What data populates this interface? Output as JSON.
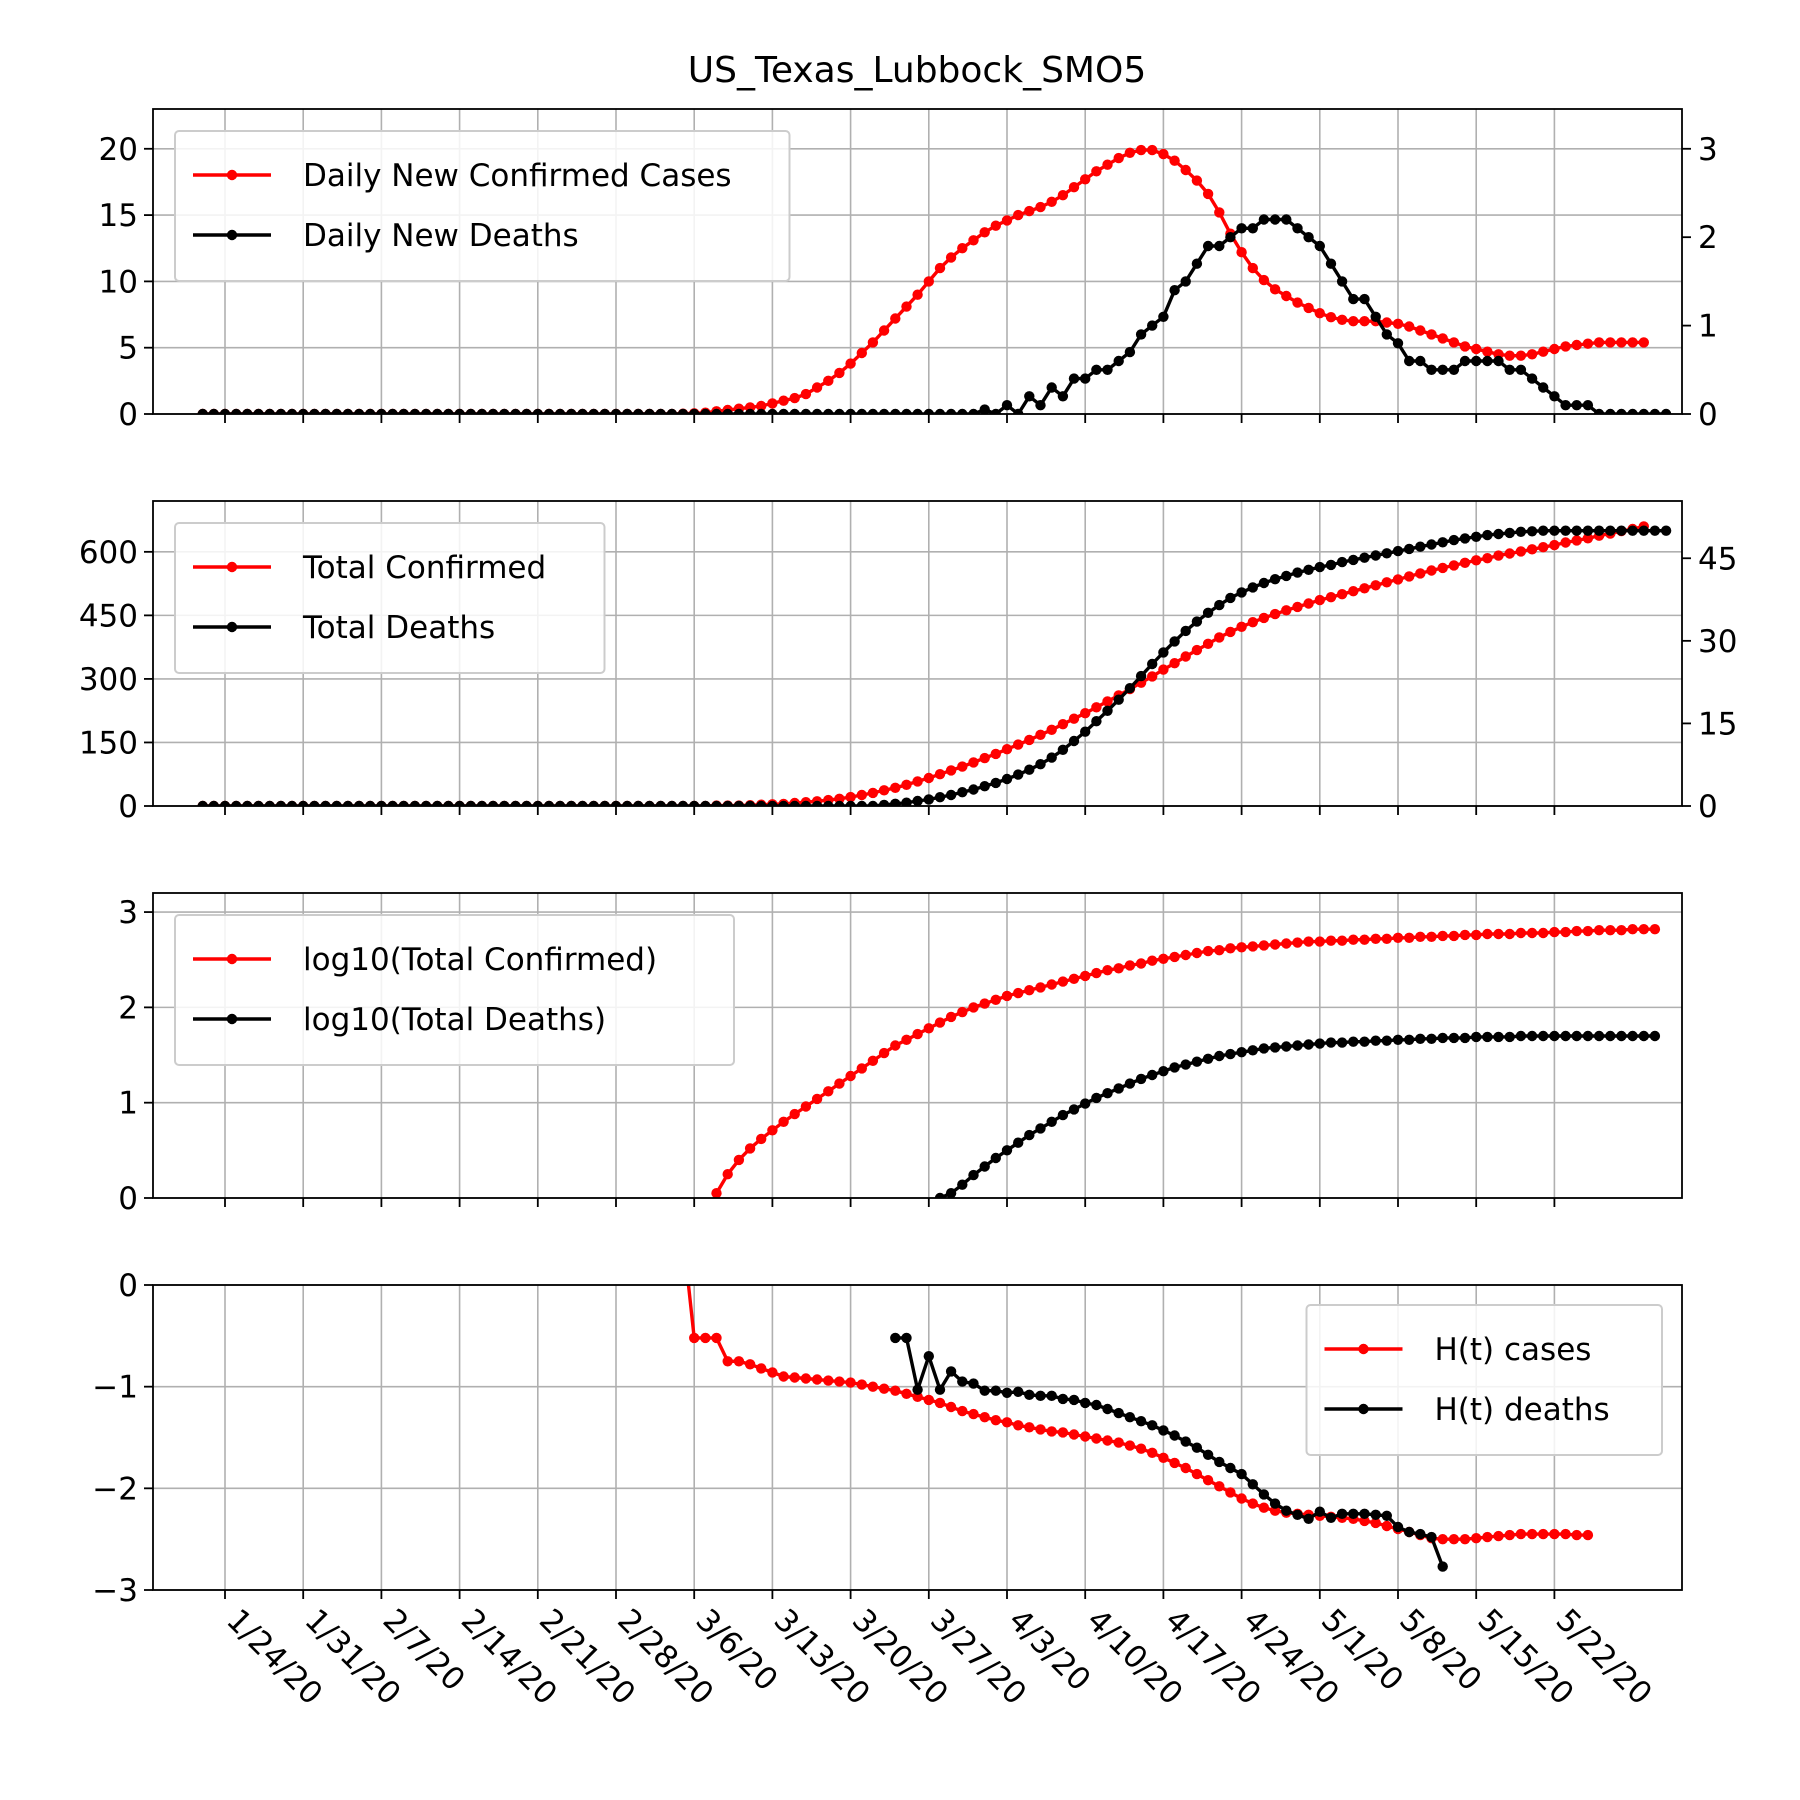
{
  "figure": {
    "title": "US_Texas_Lubbock_SMO5"
  },
  "colors": {
    "cases": "#ff0000",
    "deaths": "#000000",
    "grid": "#b0b0b0"
  },
  "chart_data": [
    {
      "type": "line",
      "panel": "daily",
      "x_start": "1/22/20",
      "x_step_days": 1,
      "x_ticks": [
        "1/24/20",
        "1/31/20",
        "2/7/20",
        "2/14/20",
        "2/21/20",
        "2/28/20",
        "3/6/20",
        "3/13/20",
        "3/20/20",
        "3/27/20",
        "4/3/20",
        "4/10/20",
        "4/17/20",
        "4/24/20",
        "5/1/20",
        "5/8/20",
        "5/15/20",
        "5/22/20"
      ],
      "ylim": [
        0,
        23
      ],
      "yticks": [
        0,
        5,
        10,
        15,
        20
      ],
      "y2lim": [
        0,
        3.45
      ],
      "y2ticks": [
        0,
        1,
        2,
        3
      ],
      "grid": true,
      "legend": "upper-left",
      "series": [
        {
          "name": "Daily New Confirmed Cases",
          "axis": "left",
          "color": "#ff0000",
          "values": [
            0,
            0,
            0,
            0,
            0,
            0,
            0,
            0,
            0,
            0,
            0,
            0,
            0,
            0,
            0,
            0,
            0,
            0,
            0,
            0,
            0,
            0,
            0,
            0,
            0,
            0,
            0,
            0,
            0,
            0,
            0,
            0,
            0,
            0,
            0,
            0,
            0,
            0,
            0,
            0,
            0,
            0,
            0,
            0.02,
            0.05,
            0.1,
            0.2,
            0.3,
            0.4,
            0.5,
            0.6,
            0.8,
            1.0,
            1.2,
            1.5,
            2.0,
            2.5,
            3.1,
            3.8,
            4.6,
            5.4,
            6.3,
            7.2,
            8.1,
            9.0,
            10.0,
            11.0,
            11.8,
            12.5,
            13.1,
            13.7,
            14.2,
            14.6,
            15.0,
            15.3,
            15.6,
            16.0,
            16.5,
            17.1,
            17.7,
            18.3,
            18.8,
            19.3,
            19.7,
            19.9,
            19.9,
            19.6,
            19.1,
            18.4,
            17.6,
            16.6,
            15.2,
            13.6,
            12.2,
            11.0,
            10.1,
            9.4,
            8.9,
            8.4,
            8.0,
            7.6,
            7.3,
            7.1,
            7.0,
            7.0,
            7.0,
            6.9,
            6.8,
            6.6,
            6.3,
            6.0,
            5.7,
            5.4,
            5.1,
            4.9,
            4.7,
            4.5,
            4.4,
            4.4,
            4.5,
            4.7,
            4.9,
            5.1,
            5.2,
            5.3,
            5.4,
            5.4,
            5.4,
            5.4,
            5.4
          ]
        },
        {
          "name": "Daily New Deaths",
          "axis": "right",
          "color": "#000000",
          "values": [
            0,
            0,
            0,
            0,
            0,
            0,
            0,
            0,
            0,
            0,
            0,
            0,
            0,
            0,
            0,
            0,
            0,
            0,
            0,
            0,
            0,
            0,
            0,
            0,
            0,
            0,
            0,
            0,
            0,
            0,
            0,
            0,
            0,
            0,
            0,
            0,
            0,
            0,
            0,
            0,
            0,
            0,
            0,
            0,
            0,
            0,
            0,
            0,
            0,
            0,
            0,
            0,
            0,
            0,
            0,
            0,
            0,
            0,
            0,
            0,
            0,
            0,
            0,
            0,
            0,
            0,
            0,
            0,
            0,
            0,
            0.05,
            0,
            0.1,
            0,
            0.2,
            0.1,
            0.3,
            0.2,
            0.4,
            0.4,
            0.5,
            0.5,
            0.6,
            0.7,
            0.9,
            1.0,
            1.1,
            1.4,
            1.5,
            1.7,
            1.9,
            1.9,
            2.0,
            2.1,
            2.1,
            2.2,
            2.2,
            2.2,
            2.1,
            2.0,
            1.9,
            1.7,
            1.5,
            1.3,
            1.3,
            1.1,
            0.9,
            0.8,
            0.6,
            0.6,
            0.5,
            0.5,
            0.5,
            0.6,
            0.6,
            0.6,
            0.6,
            0.5,
            0.5,
            0.4,
            0.3,
            0.2,
            0.1,
            0.1,
            0.1,
            0,
            0,
            0,
            0,
            0,
            0,
            0
          ]
        }
      ]
    },
    {
      "type": "line",
      "panel": "total",
      "x_start": "1/22/20",
      "x_step_days": 1,
      "ylim": [
        0,
        720
      ],
      "yticks": [
        0,
        150,
        300,
        450,
        600
      ],
      "y2lim": [
        0,
        55.4
      ],
      "y2ticks": [
        0,
        15,
        30,
        45
      ],
      "grid": true,
      "legend": "upper-left",
      "series": [
        {
          "name": "Total Confirmed",
          "axis": "left",
          "color": "#ff0000",
          "values": [
            0,
            0,
            0,
            0,
            0,
            0,
            0,
            0,
            0,
            0,
            0,
            0,
            0,
            0,
            0,
            0,
            0,
            0,
            0,
            0,
            0,
            0,
            0,
            0,
            0,
            0,
            0,
            0,
            0,
            0,
            0,
            0,
            0,
            0,
            0,
            0,
            0,
            0,
            0,
            0,
            0,
            0,
            0,
            0,
            0,
            0,
            1,
            1,
            1,
            2,
            3,
            4,
            5,
            7,
            9,
            11,
            14,
            17,
            21,
            26,
            31,
            37,
            43,
            50,
            58,
            66,
            75,
            84,
            93,
            103,
            113,
            123,
            134,
            145,
            156,
            168,
            180,
            193,
            206,
            219,
            233,
            247,
            261,
            276,
            291,
            306,
            322,
            337,
            353,
            368,
            383,
            398,
            411,
            423,
            434,
            444,
            453,
            462,
            470,
            478,
            486,
            493,
            500,
            507,
            514,
            521,
            528,
            535,
            542,
            549,
            556,
            562,
            568,
            574,
            580,
            585,
            591,
            596,
            601,
            606,
            611,
            616,
            622,
            627,
            632,
            638,
            643,
            649,
            654,
            660
          ]
        },
        {
          "name": "Total Deaths",
          "axis": "right",
          "color": "#000000",
          "values": [
            0,
            0,
            0,
            0,
            0,
            0,
            0,
            0,
            0,
            0,
            0,
            0,
            0,
            0,
            0,
            0,
            0,
            0,
            0,
            0,
            0,
            0,
            0,
            0,
            0,
            0,
            0,
            0,
            0,
            0,
            0,
            0,
            0,
            0,
            0,
            0,
            0,
            0,
            0,
            0,
            0,
            0,
            0,
            0,
            0,
            0,
            0,
            0,
            0,
            0,
            0,
            0,
            0,
            0,
            0,
            0,
            0,
            0,
            0,
            0,
            0,
            0.2,
            0.4,
            0.6,
            0.9,
            1.2,
            1.6,
            2.0,
            2.5,
            3.0,
            3.6,
            4.2,
            4.9,
            5.7,
            6.6,
            7.6,
            8.8,
            10.2,
            11.8,
            13.5,
            15.4,
            17.3,
            19.3,
            21.4,
            23.6,
            25.8,
            27.9,
            29.9,
            31.8,
            33.5,
            35.1,
            36.5,
            37.8,
            38.8,
            39.7,
            40.5,
            41.2,
            41.8,
            42.4,
            42.9,
            43.4,
            43.8,
            44.3,
            44.7,
            45.1,
            45.5,
            45.9,
            46.3,
            46.7,
            47.1,
            47.5,
            47.9,
            48.3,
            48.6,
            48.9,
            49.2,
            49.4,
            49.6,
            49.8,
            49.9,
            50,
            50,
            50,
            50,
            50,
            50,
            50,
            50,
            50,
            50,
            50,
            50
          ]
        }
      ]
    },
    {
      "type": "line",
      "panel": "log",
      "x_start": "1/22/20",
      "x_step_days": 1,
      "ylim": [
        0,
        3.2
      ],
      "yticks": [
        0,
        1,
        2,
        3
      ],
      "grid": true,
      "legend": "upper-left",
      "series": [
        {
          "name": "log10(Total Confirmed)",
          "color": "#ff0000",
          "start_index": 46,
          "values": [
            0.05,
            0.25,
            0.4,
            0.52,
            0.62,
            0.71,
            0.8,
            0.88,
            0.96,
            1.04,
            1.12,
            1.2,
            1.28,
            1.36,
            1.44,
            1.52,
            1.6,
            1.66,
            1.72,
            1.78,
            1.84,
            1.9,
            1.95,
            2.0,
            2.04,
            2.08,
            2.12,
            2.15,
            2.18,
            2.21,
            2.24,
            2.27,
            2.3,
            2.33,
            2.36,
            2.39,
            2.41,
            2.44,
            2.46,
            2.49,
            2.51,
            2.53,
            2.55,
            2.57,
            2.59,
            2.6,
            2.62,
            2.63,
            2.64,
            2.65,
            2.66,
            2.67,
            2.68,
            2.69,
            2.69,
            2.7,
            2.7,
            2.71,
            2.71,
            2.72,
            2.72,
            2.73,
            2.73,
            2.74,
            2.74,
            2.75,
            2.75,
            2.76,
            2.76,
            2.77,
            2.77,
            2.77,
            2.78,
            2.78,
            2.78,
            2.79,
            2.79,
            2.8,
            2.8,
            2.81,
            2.81,
            2.81,
            2.82,
            2.82,
            2.82
          ]
        },
        {
          "name": "log10(Total Deaths)",
          "color": "#000000",
          "start_index": 66,
          "values": [
            0,
            0.05,
            0.14,
            0.24,
            0.33,
            0.42,
            0.5,
            0.58,
            0.66,
            0.73,
            0.8,
            0.87,
            0.93,
            0.99,
            1.05,
            1.1,
            1.15,
            1.2,
            1.25,
            1.29,
            1.33,
            1.37,
            1.4,
            1.43,
            1.46,
            1.49,
            1.51,
            1.53,
            1.55,
            1.57,
            1.58,
            1.59,
            1.6,
            1.61,
            1.62,
            1.63,
            1.63,
            1.64,
            1.64,
            1.65,
            1.65,
            1.66,
            1.66,
            1.67,
            1.67,
            1.68,
            1.68,
            1.68,
            1.69,
            1.69,
            1.69,
            1.69,
            1.7,
            1.7,
            1.7,
            1.7,
            1.7,
            1.7,
            1.7,
            1.7,
            1.7,
            1.7,
            1.7,
            1.7,
            1.7
          ]
        }
      ]
    },
    {
      "type": "line",
      "panel": "hurst",
      "x_start": "1/22/20",
      "x_step_days": 1,
      "ylim": [
        -3,
        0
      ],
      "yticks": [
        0,
        -1,
        -2,
        -3
      ],
      "grid": true,
      "legend": "upper-right",
      "series": [
        {
          "name": "H(t) cases",
          "color": "#ff0000",
          "start_index": 43,
          "values": [
            0.5,
            -0.52,
            -0.52,
            -0.52,
            -0.75,
            -0.75,
            -0.78,
            -0.82,
            -0.86,
            -0.9,
            -0.91,
            -0.92,
            -0.93,
            -0.94,
            -0.95,
            -0.96,
            -0.98,
            -1.0,
            -1.02,
            -1.04,
            -1.07,
            -1.1,
            -1.13,
            -1.16,
            -1.2,
            -1.24,
            -1.27,
            -1.3,
            -1.33,
            -1.35,
            -1.38,
            -1.4,
            -1.42,
            -1.44,
            -1.45,
            -1.47,
            -1.49,
            -1.51,
            -1.53,
            -1.55,
            -1.58,
            -1.61,
            -1.65,
            -1.7,
            -1.75,
            -1.8,
            -1.86,
            -1.92,
            -1.98,
            -2.04,
            -2.1,
            -2.15,
            -2.19,
            -2.22,
            -2.24,
            -2.25,
            -2.26,
            -2.27,
            -2.28,
            -2.29,
            -2.3,
            -2.32,
            -2.34,
            -2.37,
            -2.4,
            -2.43,
            -2.46,
            -2.49,
            -2.5,
            -2.5,
            -2.5,
            -2.49,
            -2.48,
            -2.47,
            -2.46,
            -2.45,
            -2.45,
            -2.45,
            -2.45,
            -2.45,
            -2.46,
            -2.46
          ]
        },
        {
          "name": "H(t) deaths",
          "color": "#000000",
          "start_index": 62,
          "values": [
            -0.52,
            -0.52,
            -1.03,
            -0.7,
            -1.03,
            -0.85,
            -0.95,
            -0.97,
            -1.04,
            -1.04,
            -1.06,
            -1.05,
            -1.08,
            -1.09,
            -1.09,
            -1.12,
            -1.13,
            -1.16,
            -1.18,
            -1.22,
            -1.26,
            -1.3,
            -1.34,
            -1.38,
            -1.43,
            -1.48,
            -1.54,
            -1.6,
            -1.67,
            -1.74,
            -1.8,
            -1.86,
            -1.96,
            -2.06,
            -2.15,
            -2.22,
            -2.26,
            -2.3,
            -2.23,
            -2.29,
            -2.25,
            -2.25,
            -2.25,
            -2.26,
            -2.27,
            -2.38,
            -2.43,
            -2.45,
            -2.48,
            -2.77
          ]
        }
      ]
    }
  ]
}
